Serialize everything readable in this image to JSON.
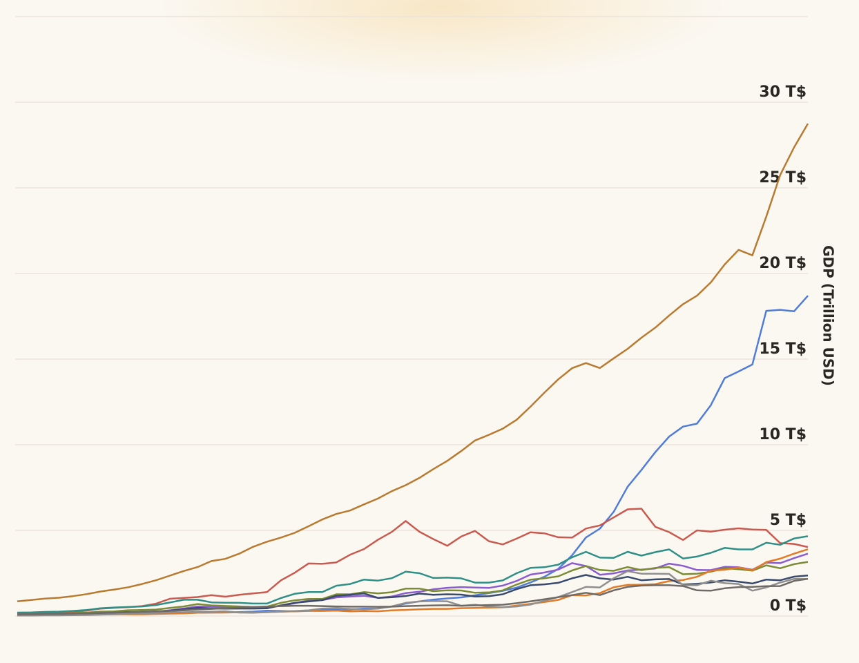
{
  "chart_data": {
    "type": "line",
    "y_label": "GDP (Trillion USD)",
    "categories": [
      null,
      null,
      null,
      null,
      null,
      null,
      null,
      null,
      null,
      null,
      null,
      null,
      null,
      null,
      null,
      null,
      null,
      null,
      null,
      null,
      null,
      null,
      null,
      null,
      null,
      null,
      null,
      null,
      null,
      null,
      null,
      null,
      null,
      null,
      null,
      null,
      null,
      null,
      null,
      null,
      null,
      null,
      null,
      null,
      null,
      null,
      null,
      null,
      null,
      null,
      null,
      null,
      null,
      null,
      null,
      null,
      null,
      null
    ],
    "ylim": [
      0,
      35
    ],
    "yticks": [
      {
        "value": 0,
        "label": "0 T$"
      },
      {
        "value": 5,
        "label": "5 T$"
      },
      {
        "value": 10,
        "label": "10 T$"
      },
      {
        "value": 15,
        "label": "15 T$"
      },
      {
        "value": 20,
        "label": "20 T$"
      },
      {
        "value": 25,
        "label": "25 T$"
      },
      {
        "value": 30,
        "label": "30 T$"
      }
    ],
    "grid": true,
    "series": [
      {
        "color": "#b97a30",
        "values": [
          0.86,
          0.94,
          1.02,
          1.07,
          1.16,
          1.28,
          1.43,
          1.55,
          1.68,
          1.87,
          2.09,
          2.36,
          2.63,
          2.86,
          3.21,
          3.34,
          3.64,
          4.04,
          4.34,
          4.58,
          4.86,
          5.24,
          5.64,
          5.96,
          6.16,
          6.52,
          6.86,
          7.29,
          7.64,
          8.07,
          8.58,
          9.06,
          9.63,
          10.25,
          10.58,
          10.94,
          11.46,
          12.22,
          13.04,
          13.82,
          14.47,
          14.77,
          14.48,
          15.05,
          15.6,
          16.25,
          16.84,
          17.55,
          18.21,
          18.7,
          19.48,
          20.53,
          21.38,
          21.06,
          23.32,
          25.74,
          27.36,
          28.75
        ]
      },
      {
        "color": "#4f7bd9",
        "values": [
          0.07,
          0.07,
          0.08,
          0.09,
          0.1,
          0.11,
          0.14,
          0.14,
          0.16,
          0.15,
          0.17,
          0.15,
          0.18,
          0.19,
          0.2,
          0.21,
          0.23,
          0.26,
          0.31,
          0.3,
          0.27,
          0.31,
          0.35,
          0.36,
          0.38,
          0.43,
          0.44,
          0.56,
          0.73,
          0.86,
          0.96,
          1.03,
          1.09,
          1.21,
          1.34,
          1.47,
          1.66,
          1.96,
          2.29,
          2.75,
          3.55,
          4.59,
          5.1,
          6.09,
          7.55,
          8.53,
          9.57,
          10.48,
          11.06,
          11.23,
          12.31,
          13.89,
          14.28,
          14.69,
          17.82,
          17.88,
          17.79,
          18.7
        ]
      },
      {
        "color": "#c95a4f",
        "values": [
          0.12,
          0.15,
          0.17,
          0.21,
          0.24,
          0.32,
          0.43,
          0.48,
          0.52,
          0.58,
          0.72,
          1.01,
          1.06,
          1.11,
          1.22,
          1.13,
          1.24,
          1.32,
          1.4,
          2.08,
          2.53,
          3.07,
          3.05,
          3.13,
          3.58,
          3.91,
          4.45,
          4.91,
          5.55,
          4.92,
          4.49,
          4.1,
          4.64,
          4.97,
          4.37,
          4.18,
          4.52,
          4.89,
          4.83,
          4.6,
          4.58,
          5.11,
          5.29,
          5.76,
          6.23,
          6.27,
          5.21,
          4.9,
          4.44,
          5.0,
          4.93,
          5.04,
          5.12,
          5.05,
          5.03,
          4.26,
          4.21,
          4.03
        ]
      },
      {
        "color": "#2f8f86",
        "values": [
          0.2,
          0.21,
          0.24,
          0.26,
          0.3,
          0.35,
          0.45,
          0.5,
          0.53,
          0.56,
          0.64,
          0.79,
          0.95,
          0.95,
          0.8,
          0.78,
          0.77,
          0.73,
          0.73,
          1.05,
          1.3,
          1.4,
          1.4,
          1.77,
          1.87,
          2.13,
          2.07,
          2.21,
          2.59,
          2.5,
          2.22,
          2.24,
          2.2,
          1.95,
          1.95,
          2.08,
          2.5,
          2.81,
          2.85,
          3.0,
          3.43,
          3.75,
          3.41,
          3.4,
          3.75,
          3.53,
          3.73,
          3.89,
          3.36,
          3.47,
          3.69,
          3.98,
          3.89,
          3.89,
          4.28,
          4.16,
          4.53,
          4.66
        ]
      },
      {
        "color": "#8a5ccf",
        "values": [
          0.11,
          0.11,
          0.12,
          0.13,
          0.15,
          0.17,
          0.19,
          0.21,
          0.24,
          0.23,
          0.26,
          0.34,
          0.44,
          0.56,
          0.54,
          0.52,
          0.49,
          0.46,
          0.49,
          0.6,
          0.75,
          0.91,
          0.93,
          1.09,
          1.14,
          1.18,
          1.06,
          1.14,
          1.34,
          1.42,
          1.56,
          1.65,
          1.69,
          1.66,
          1.64,
          1.78,
          2.05,
          2.42,
          2.54,
          2.71,
          3.09,
          2.92,
          2.41,
          2.49,
          2.66,
          2.71,
          2.78,
          3.06,
          2.93,
          2.69,
          2.68,
          2.87,
          2.85,
          2.7,
          3.12,
          3.09,
          3.38,
          3.64
        ]
      },
      {
        "color": "#7b8c35",
        "values": [
          0.09,
          0.13,
          0.14,
          0.15,
          0.17,
          0.2,
          0.26,
          0.27,
          0.34,
          0.35,
          0.38,
          0.47,
          0.56,
          0.7,
          0.62,
          0.59,
          0.56,
          0.53,
          0.55,
          0.77,
          0.92,
          1.0,
          1.0,
          1.27,
          1.27,
          1.4,
          1.32,
          1.39,
          1.6,
          1.6,
          1.45,
          1.5,
          1.49,
          1.36,
          1.38,
          1.5,
          1.84,
          2.12,
          2.2,
          2.32,
          2.66,
          2.92,
          2.69,
          2.64,
          2.86,
          2.68,
          2.81,
          2.85,
          2.44,
          2.47,
          2.59,
          2.79,
          2.73,
          2.65,
          2.96,
          2.79,
          3.03,
          3.16
        ]
      },
      {
        "color": "#e27a26",
        "values": [
          0.05,
          0.05,
          0.06,
          0.06,
          0.07,
          0.07,
          0.09,
          0.1,
          0.1,
          0.1,
          0.12,
          0.14,
          0.15,
          0.19,
          0.2,
          0.2,
          0.22,
          0.21,
          0.23,
          0.25,
          0.28,
          0.3,
          0.3,
          0.32,
          0.27,
          0.29,
          0.28,
          0.33,
          0.36,
          0.39,
          0.42,
          0.42,
          0.46,
          0.47,
          0.49,
          0.51,
          0.61,
          0.71,
          0.82,
          0.94,
          1.22,
          1.2,
          1.34,
          1.68,
          1.82,
          1.83,
          1.86,
          2.04,
          2.1,
          2.29,
          2.65,
          2.7,
          2.84,
          2.67,
          3.15,
          3.35,
          3.64,
          3.9
        ]
      },
      {
        "color": "#394a6c",
        "values": [
          0.07,
          0.08,
          0.09,
          0.11,
          0.12,
          0.14,
          0.16,
          0.2,
          0.23,
          0.23,
          0.26,
          0.32,
          0.4,
          0.48,
          0.43,
          0.43,
          0.44,
          0.44,
          0.45,
          0.62,
          0.77,
          0.85,
          0.93,
          1.18,
          1.24,
          1.32,
          1.06,
          1.1,
          1.17,
          1.31,
          1.24,
          1.27,
          1.25,
          1.14,
          1.16,
          1.27,
          1.57,
          1.8,
          1.85,
          1.94,
          2.2,
          2.4,
          2.2,
          2.13,
          2.29,
          2.09,
          2.14,
          2.16,
          1.84,
          1.88,
          1.96,
          2.09,
          2.01,
          1.9,
          2.13,
          2.09,
          2.3,
          2.37
        ]
      },
      {
        "color": "#8f8f8f",
        "values": [
          0.03,
          0.03,
          0.04,
          0.04,
          0.05,
          0.06,
          0.08,
          0.1,
          0.12,
          0.15,
          0.18,
          0.2,
          0.22,
          0.24,
          0.26,
          0.28,
          0.2,
          0.19,
          0.22,
          0.26,
          0.29,
          0.33,
          0.44,
          0.46,
          0.41,
          0.39,
          0.44,
          0.56,
          0.77,
          0.85,
          0.88,
          0.86,
          0.6,
          0.66,
          0.56,
          0.51,
          0.56,
          0.67,
          0.89,
          1.11,
          1.4,
          1.7,
          1.67,
          2.21,
          2.62,
          2.47,
          2.47,
          2.46,
          1.8,
          1.8,
          2.06,
          1.92,
          1.87,
          1.48,
          1.67,
          1.95,
          2.17,
          2.17
        ]
      },
      {
        "color": "#6f6a65",
        "values": [
          0.1,
          0.11,
          0.12,
          0.13,
          0.14,
          0.16,
          0.18,
          0.2,
          0.22,
          0.25,
          0.28,
          0.3,
          0.33,
          0.38,
          0.42,
          0.45,
          0.5,
          0.52,
          0.55,
          0.58,
          0.6,
          0.6,
          0.58,
          0.56,
          0.55,
          0.55,
          0.54,
          0.55,
          0.58,
          0.6,
          0.62,
          0.63,
          0.6,
          0.62,
          0.64,
          0.66,
          0.75,
          0.86,
          0.98,
          1.1,
          1.22,
          1.36,
          1.22,
          1.5,
          1.7,
          1.78,
          1.8,
          1.8,
          1.75,
          1.5,
          1.48,
          1.62,
          1.69,
          1.7,
          1.74,
          1.75,
          2.05,
          2.17
        ]
      }
    ]
  }
}
